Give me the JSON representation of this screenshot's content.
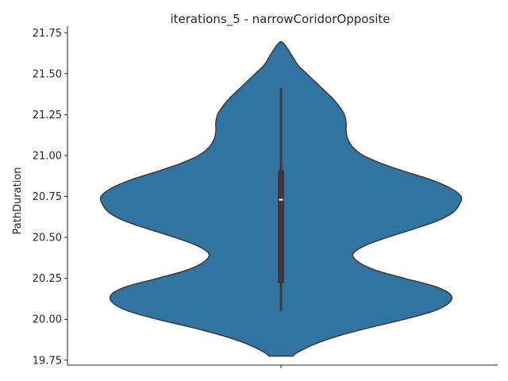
{
  "chart_data": {
    "type": "violin",
    "title": "iterations_5 - narrowCoridorOpposite",
    "xlabel": "",
    "ylabel": "PathDuration",
    "ylim": [
      19.72,
      21.79
    ],
    "yticks": [
      19.75,
      20.0,
      20.25,
      20.5,
      20.75,
      21.0,
      21.25,
      21.5,
      21.75
    ],
    "ytick_labels": [
      "19.75",
      "20.00",
      "20.25",
      "20.50",
      "20.75",
      "21.00",
      "21.25",
      "21.50",
      "21.75"
    ],
    "categories": [
      ""
    ],
    "colors": {
      "violin": "#3274a1",
      "edge": "#3a3a3a",
      "box": "#3a3a3a",
      "median": "#ffffff"
    },
    "density": {
      "y": [
        19.775,
        19.8,
        19.85,
        19.9,
        19.95,
        20.0,
        20.05,
        20.1,
        20.15,
        20.2,
        20.25,
        20.3,
        20.35,
        20.4,
        20.45,
        20.5,
        20.55,
        20.6,
        20.65,
        20.7,
        20.75,
        20.8,
        20.85,
        20.9,
        20.95,
        21.0,
        21.05,
        21.1,
        21.15,
        21.2,
        21.25,
        21.3,
        21.35,
        21.4,
        21.45,
        21.5,
        21.55,
        21.6,
        21.65,
        21.69
      ],
      "half_width": [
        0.07,
        0.1,
        0.2,
        0.34,
        0.52,
        0.72,
        0.89,
        0.98,
        0.99,
        0.9,
        0.72,
        0.55,
        0.45,
        0.42,
        0.49,
        0.62,
        0.77,
        0.91,
        1.0,
        1.04,
        1.05,
        0.99,
        0.88,
        0.73,
        0.59,
        0.48,
        0.42,
        0.39,
        0.38,
        0.38,
        0.37,
        0.34,
        0.3,
        0.25,
        0.2,
        0.15,
        0.1,
        0.07,
        0.04,
        0.01
      ]
    },
    "box": {
      "whisker_low": 20.05,
      "q1": 20.22,
      "median": 20.73,
      "q3": 20.91,
      "whisker_high": 21.41
    }
  }
}
